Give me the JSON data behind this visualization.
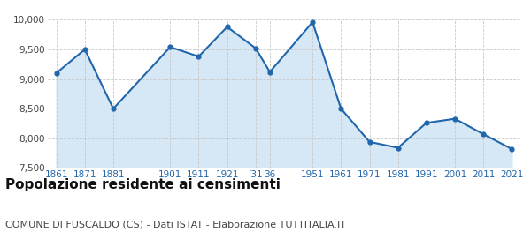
{
  "years": [
    1861,
    1871,
    1881,
    1901,
    1911,
    1921,
    1931,
    1936,
    1951,
    1961,
    1971,
    1981,
    1991,
    2001,
    2011,
    2021
  ],
  "x_labels": [
    "1861",
    "1871",
    "1881",
    "1901",
    "1911",
    "1921",
    "’31",
    "36",
    "1951",
    "1961",
    "1971",
    "1981",
    "1991",
    "2001",
    "2011",
    "2021"
  ],
  "population": [
    9100,
    9500,
    8500,
    9540,
    9380,
    9880,
    9520,
    9120,
    9960,
    8500,
    7940,
    7840,
    8260,
    8330,
    8070,
    7820
  ],
  "line_color": "#2166ac",
  "fill_color": "#d6e8f5",
  "marker_color": "#2166ac",
  "background_color": "#ffffff",
  "grid_color": "#c8c8c8",
  "title": "Popolazione residente ai censimenti",
  "subtitle": "COMUNE DI FUSCALDO (CS) - Dati ISTAT - Elaborazione TUTTITALIA.IT",
  "title_fontsize": 11,
  "subtitle_fontsize": 8,
  "ylim": [
    7500,
    10000
  ],
  "yticks": [
    7500,
    8000,
    8500,
    9000,
    9500,
    10000
  ],
  "tick_color": "#2166ac",
  "axis_label_color": "#2166ac"
}
